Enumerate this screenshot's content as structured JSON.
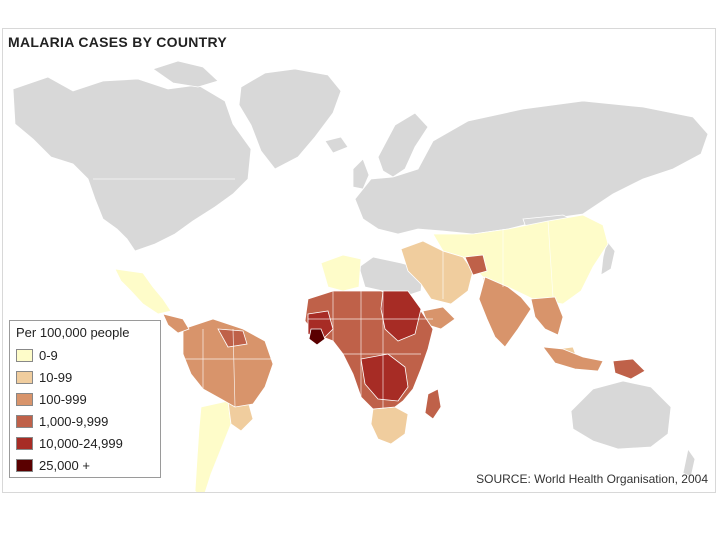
{
  "title": "MALARIA CASES BY COUNTRY",
  "legend": {
    "title": "Per 100,000 people",
    "items": [
      {
        "label": "0-9",
        "color": "#fefcc9"
      },
      {
        "label": "10-99",
        "color": "#f0cd9e"
      },
      {
        "label": "100-999",
        "color": "#d8946b"
      },
      {
        "label": "1,000-9,999",
        "color": "#bf6149"
      },
      {
        "label": "10,000-24,999",
        "color": "#a72c25"
      },
      {
        "label": "25,000 +",
        "color": "#5a0000"
      }
    ]
  },
  "no_data_color": "#d8d8d8",
  "source": "SOURCE: World Health Organisation, 2004"
}
